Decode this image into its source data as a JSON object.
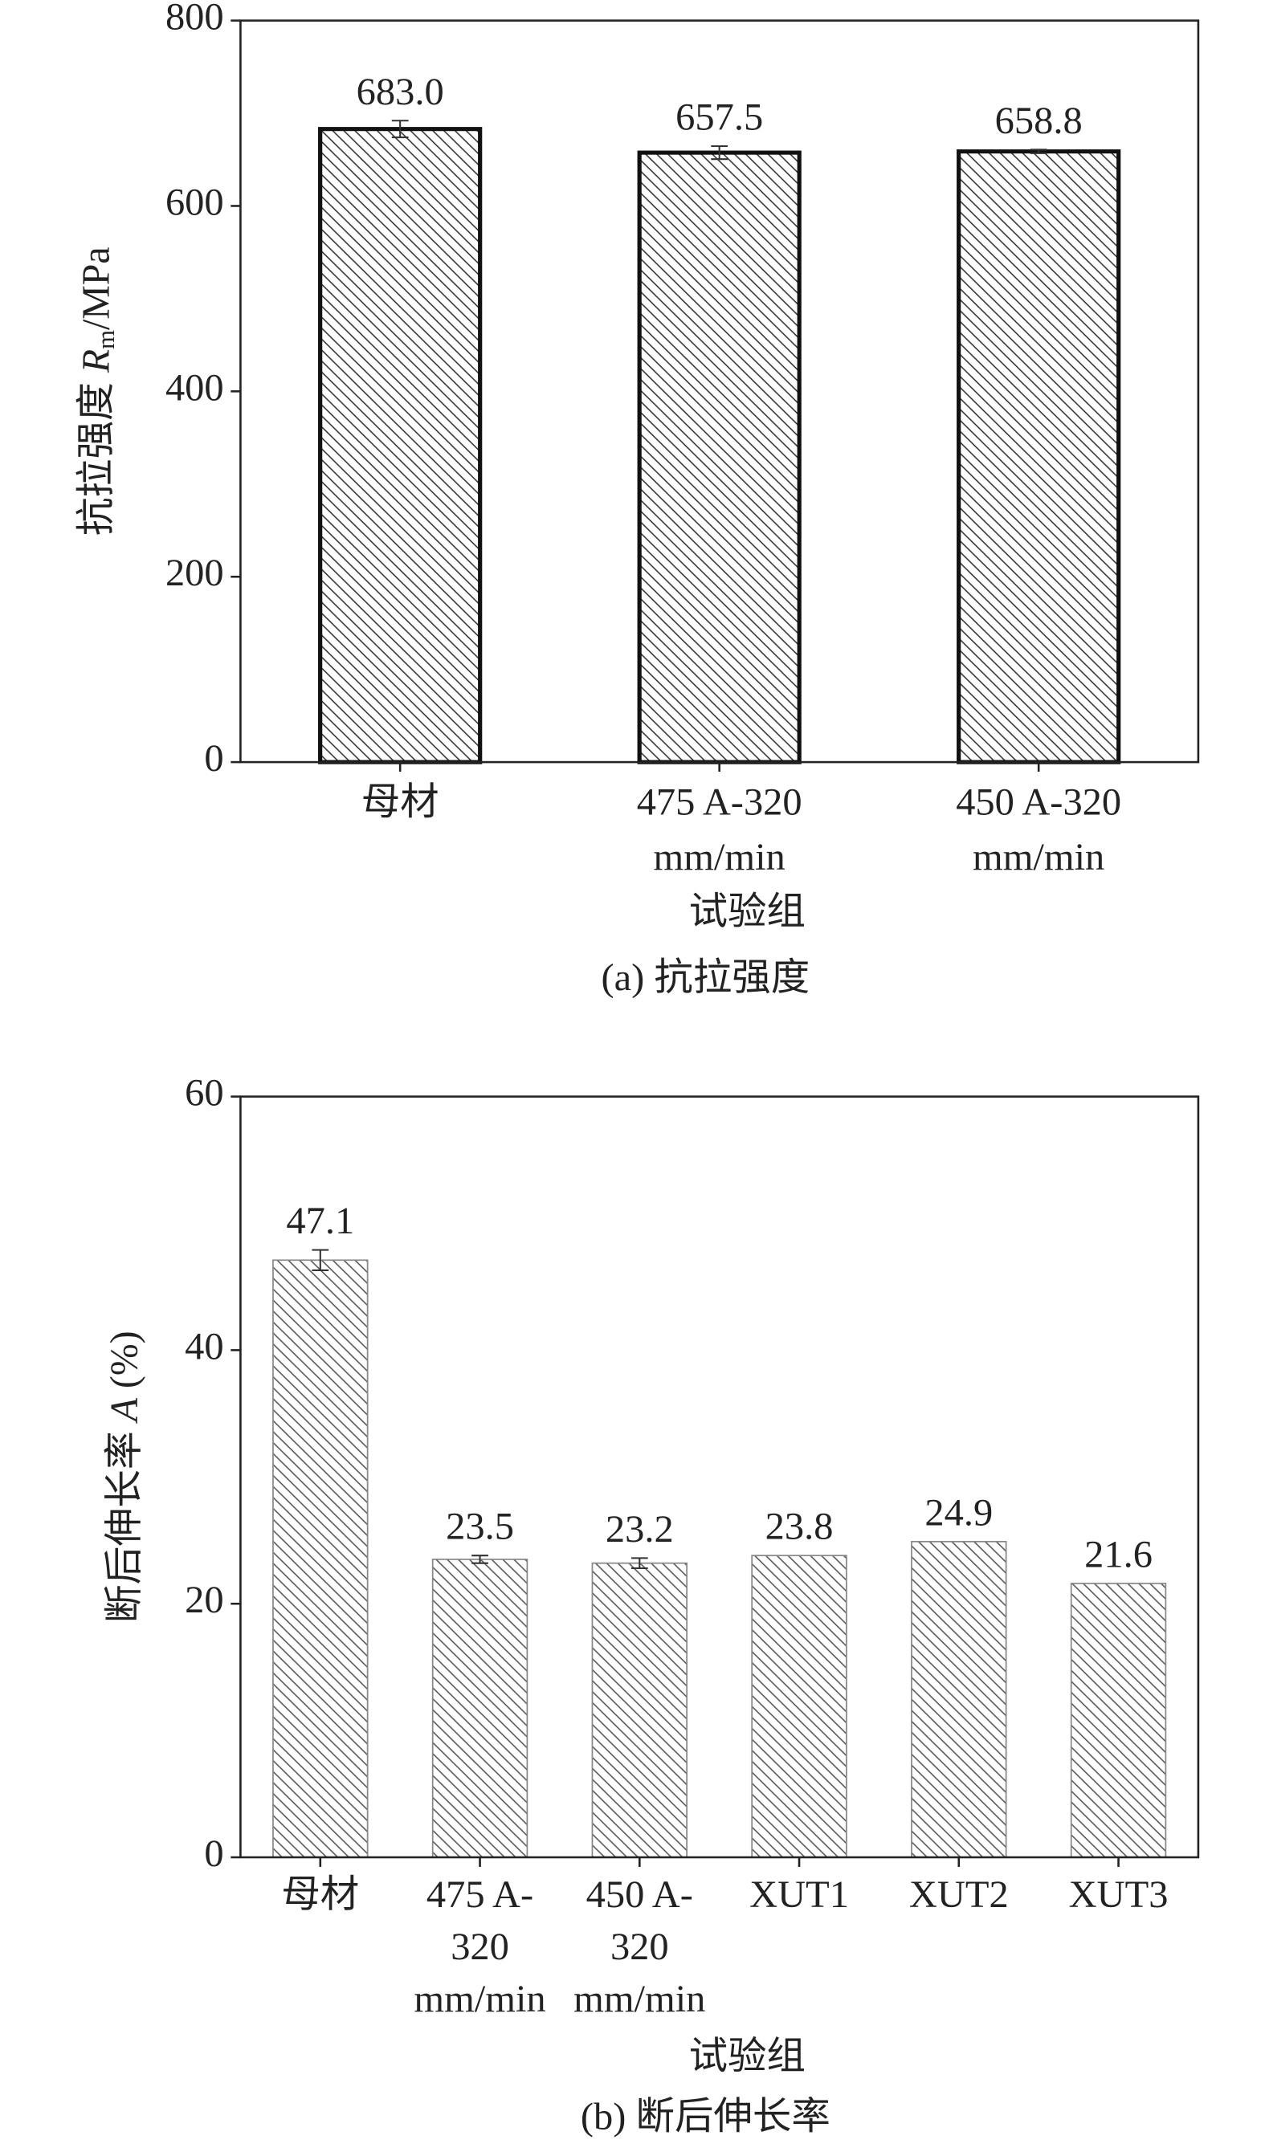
{
  "chart_data": [
    {
      "type": "bar",
      "ylabel": {
        "text": "抗拉强度 ",
        "symbol": "R",
        "subscript": "m",
        "unit": "/MPa"
      },
      "xlabel": "试验组",
      "caption": "(a) 抗拉强度",
      "categories": [
        [
          "母材"
        ],
        [
          "475 A-320",
          "mm/min"
        ],
        [
          "450 A-320",
          "mm/min"
        ]
      ],
      "values": [
        683.0,
        657.5,
        658.8
      ],
      "value_labels": [
        "683.0",
        "657.5",
        "658.8"
      ],
      "errors": [
        9,
        7,
        2
      ],
      "color": "#333333",
      "ylim": [
        0,
        800
      ],
      "yticks": [
        0,
        200,
        400,
        600,
        800
      ]
    },
    {
      "type": "bar",
      "ylabel": {
        "text": "断后伸长率 ",
        "symbol": "A",
        "unit": " (%)"
      },
      "xlabel": "试验组",
      "caption": "(b) 断后伸长率",
      "categories": [
        [
          "母材"
        ],
        [
          "475 A-",
          "320",
          "mm/min"
        ],
        [
          "450 A-",
          "320",
          "mm/min"
        ],
        [
          "XUT1"
        ],
        [
          "XUT2"
        ],
        [
          "XUT3"
        ]
      ],
      "values": [
        47.1,
        23.5,
        23.2,
        23.8,
        24.9,
        21.6
      ],
      "errors": [
        0.8,
        0.3,
        0.4,
        null,
        null,
        null
      ],
      "color": "#555555",
      "ylim": [
        0,
        60
      ],
      "yticks": [
        0,
        20,
        40,
        60
      ]
    }
  ]
}
